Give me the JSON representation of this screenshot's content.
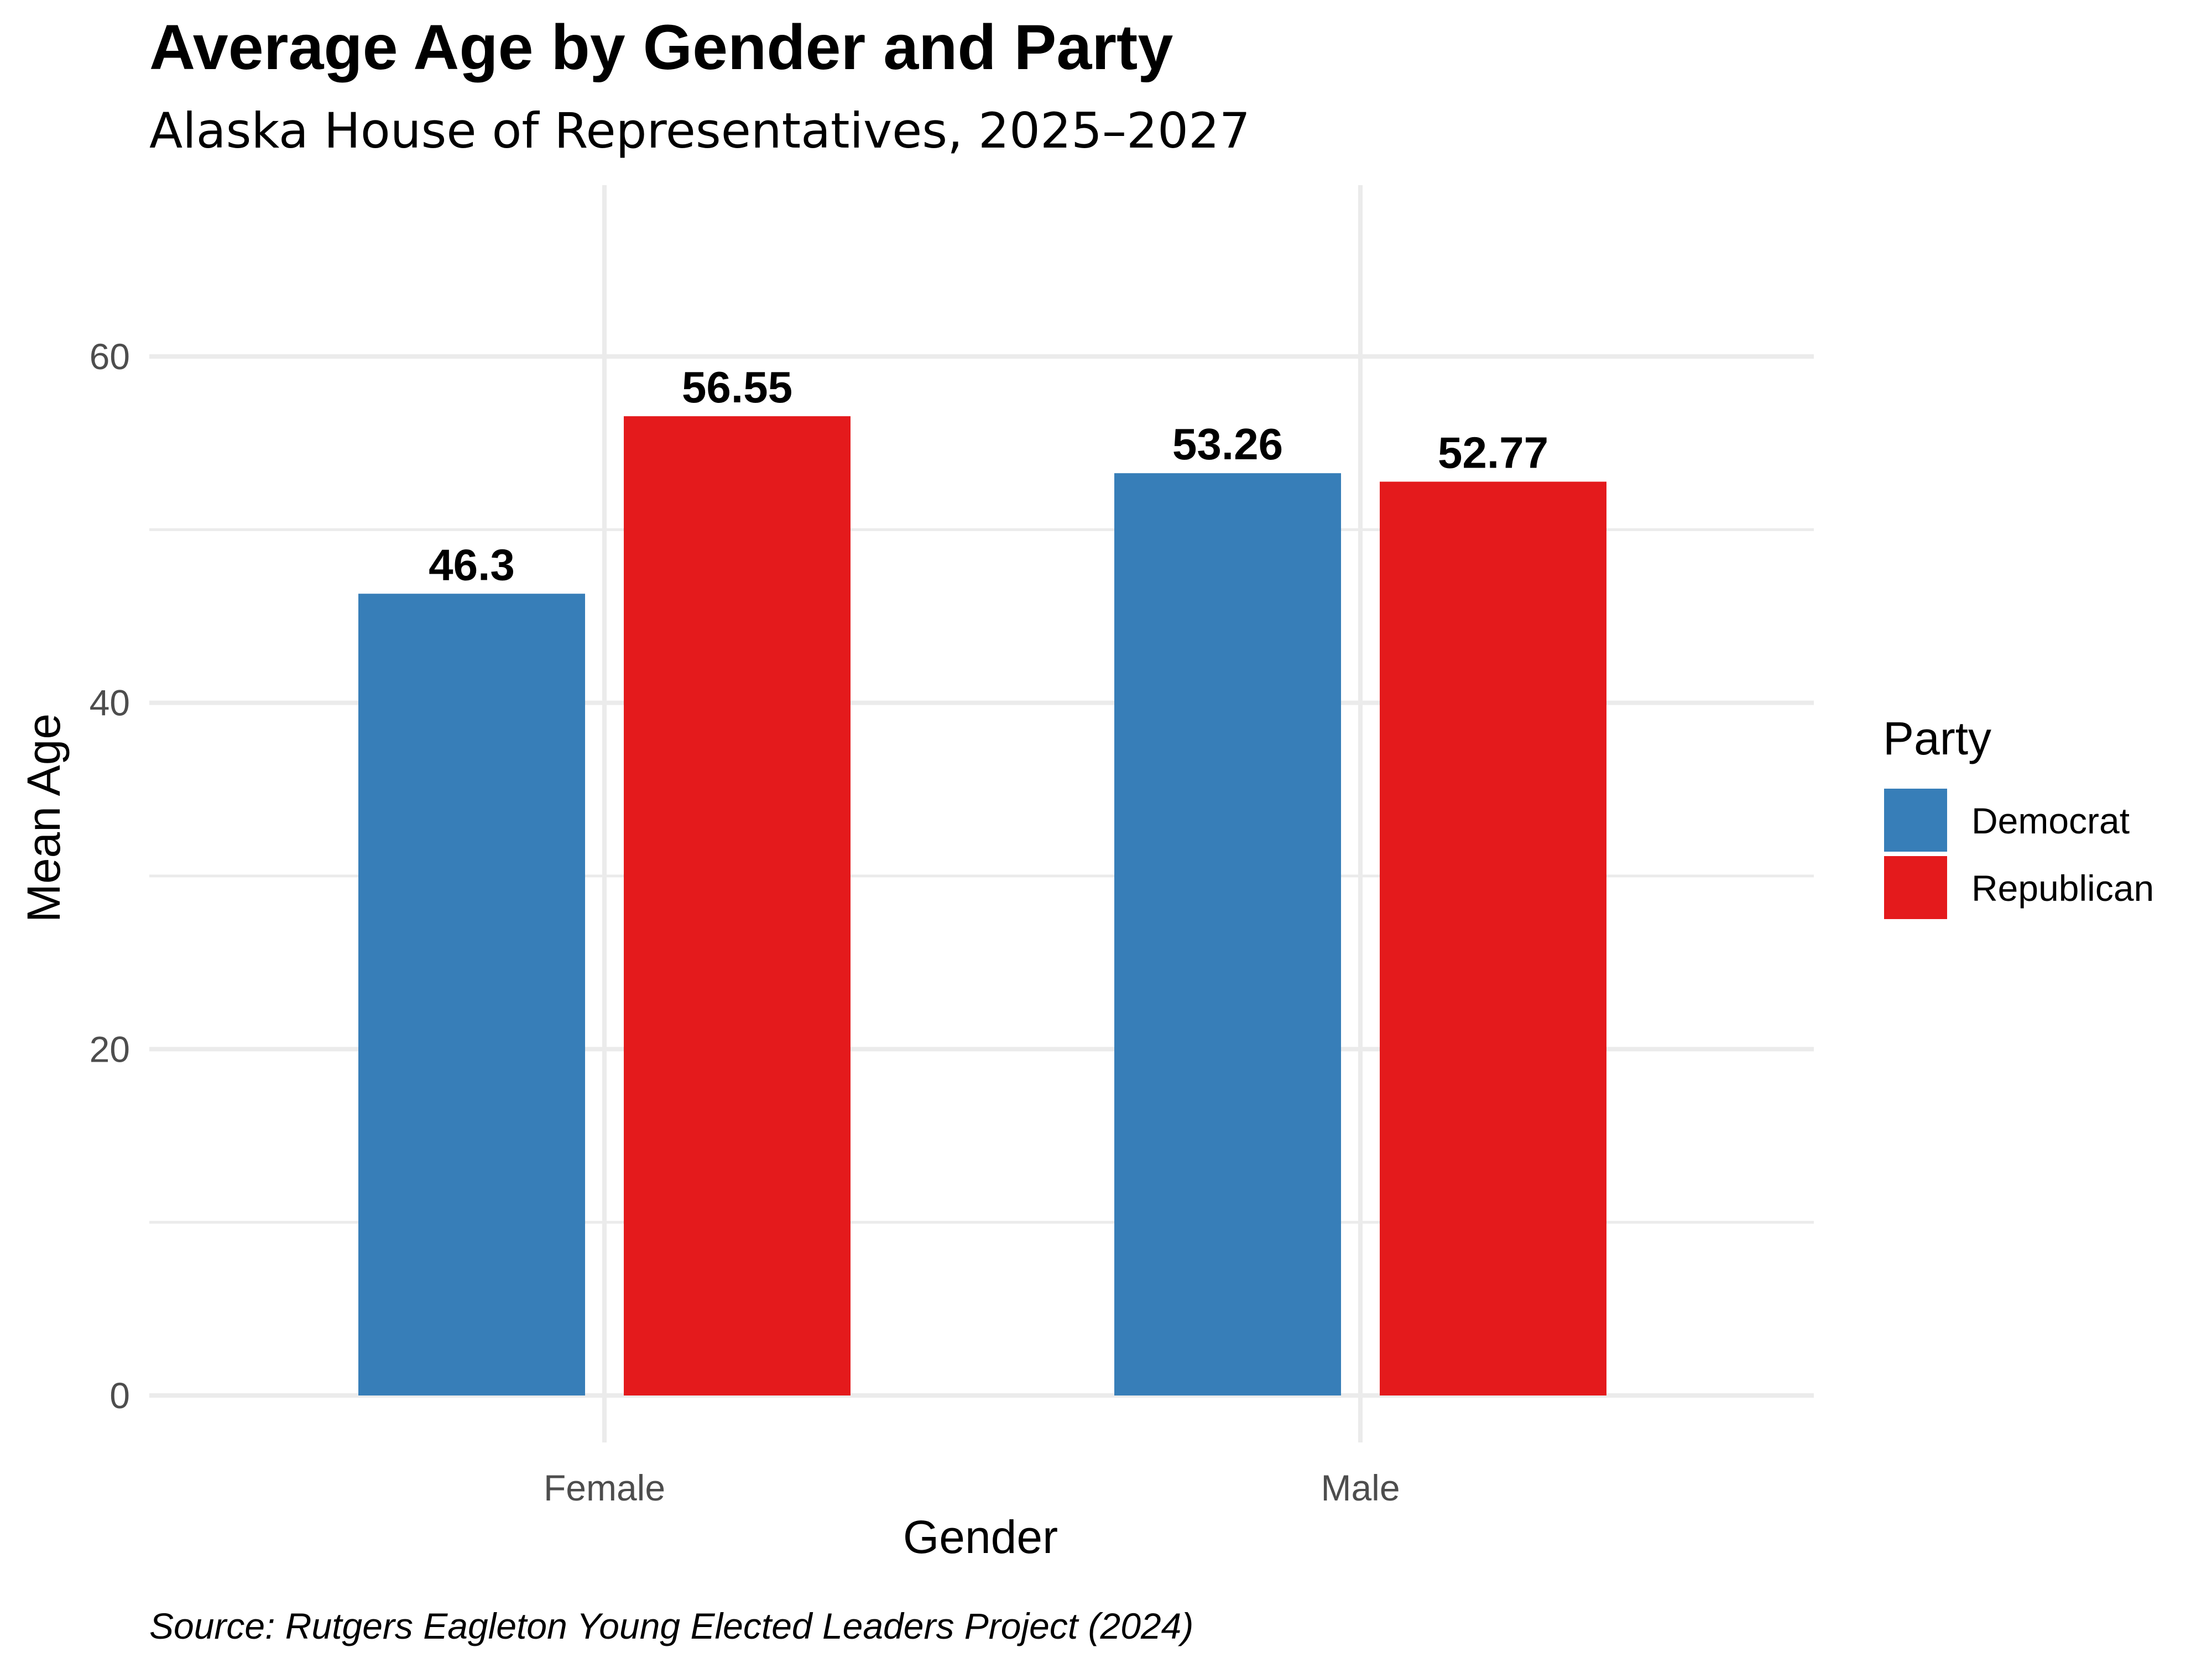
{
  "chart_data": {
    "type": "bar",
    "title": "Average Age by Gender and Party",
    "subtitle": "Alaska House of Representatives, 2025–2027",
    "xlabel": "Gender",
    "ylabel": "Mean Age",
    "categories": [
      "Female",
      "Male"
    ],
    "series": [
      {
        "name": "Democrat",
        "values": [
          46.3,
          53.26
        ],
        "labels": [
          "46.3",
          "53.26"
        ],
        "color": "#377eb8"
      },
      {
        "name": "Republican",
        "values": [
          56.55,
          52.77
        ],
        "labels": [
          "56.55",
          "52.77"
        ],
        "color": "#e41a1c"
      }
    ],
    "ylim": [
      0,
      68
    ],
    "yticks": [
      0,
      20,
      40,
      60
    ],
    "legend_title": "Party",
    "legend_position": "right",
    "grid": true,
    "caption": "Source: Rutgers Eagleton Young Elected Leaders Project (2024)"
  }
}
